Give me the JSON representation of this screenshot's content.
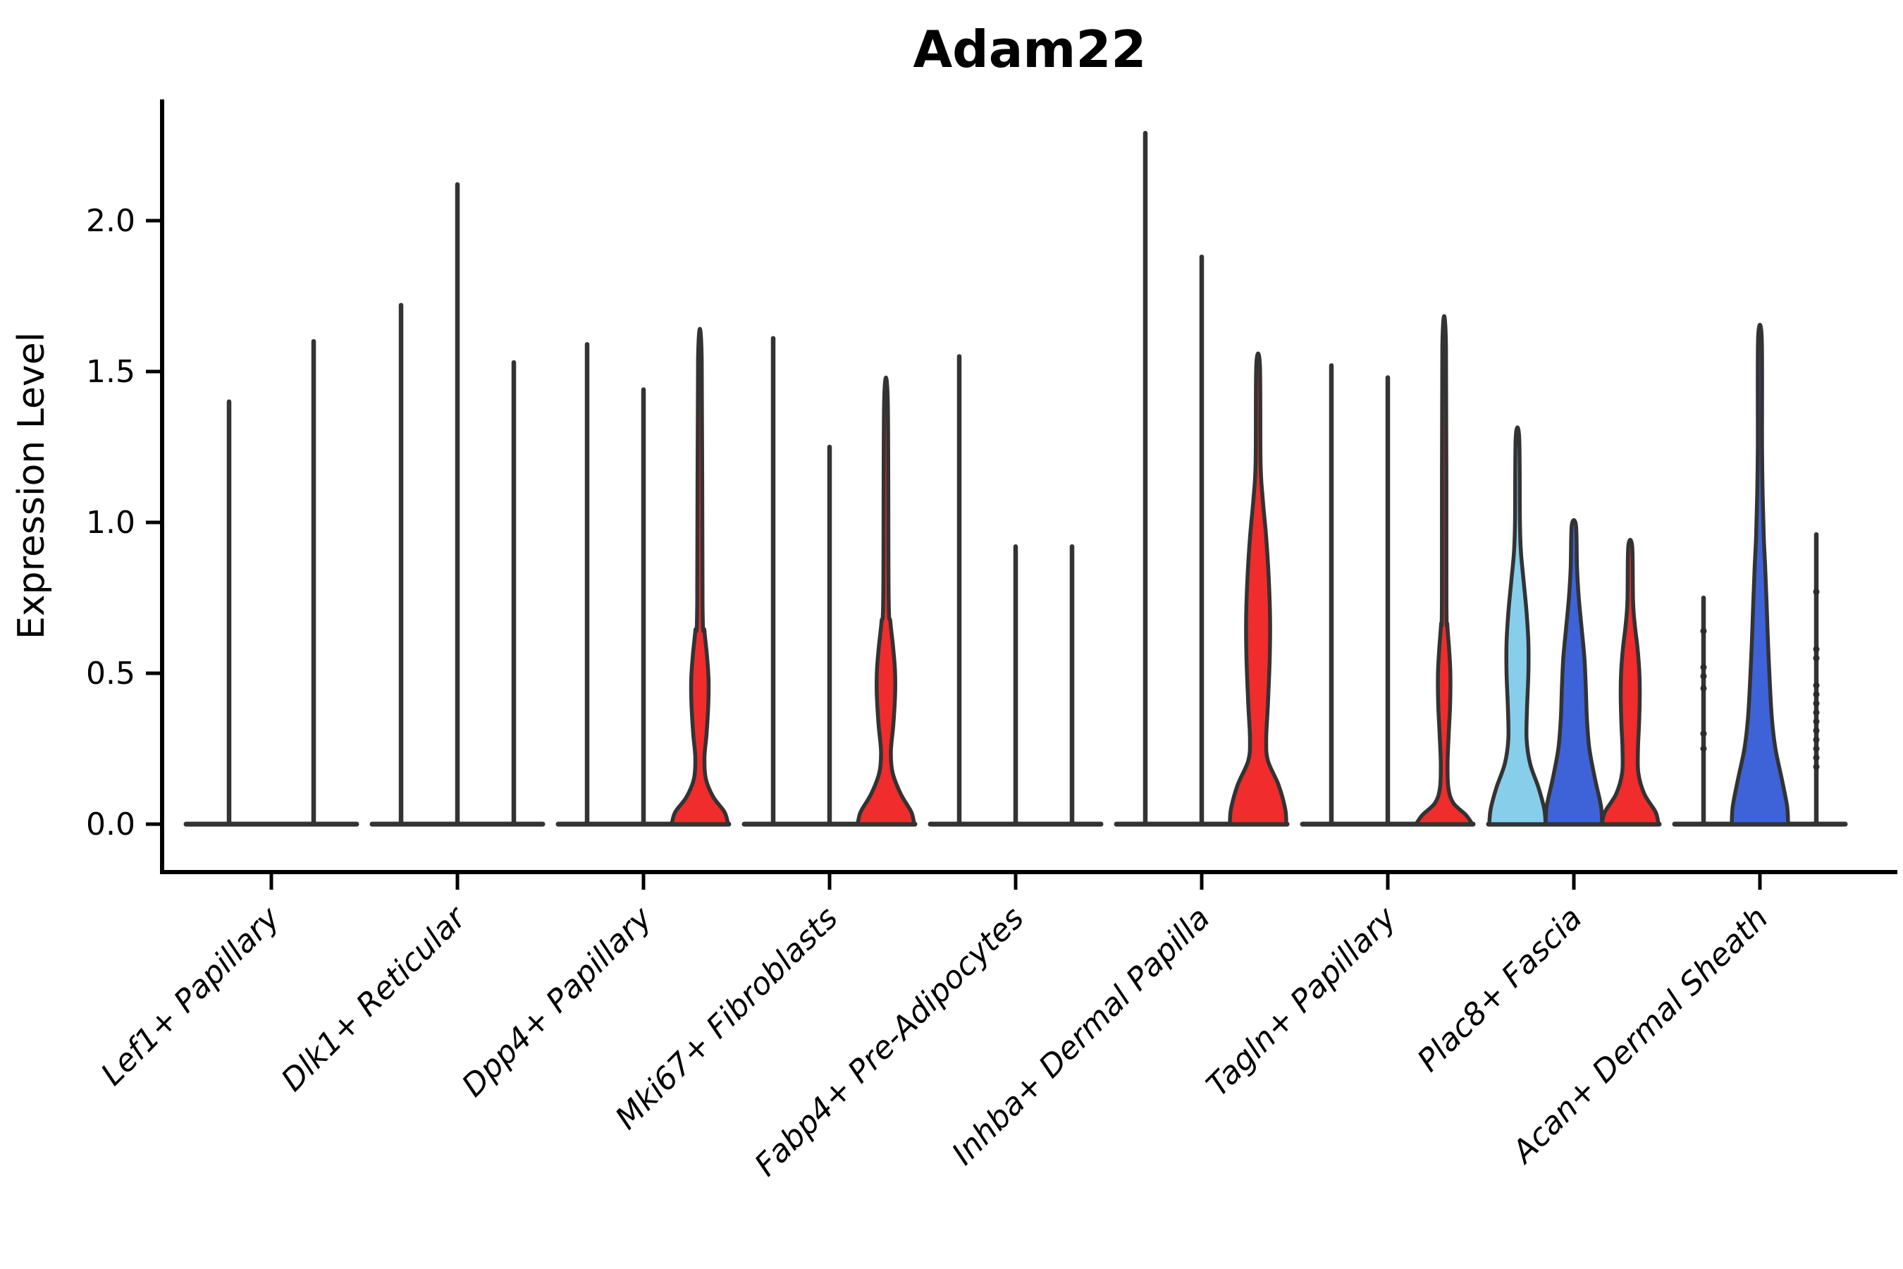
{
  "title": "Adam22",
  "chart_data": {
    "type": "violin",
    "title": "Adam22",
    "xlabel": "",
    "ylabel": "Expression Level",
    "ylim": [
      -0.16,
      2.41
    ],
    "yticks": [
      "0.0",
      "0.5",
      "1.0",
      "1.5",
      "2.0"
    ],
    "ytick_values": [
      0.0,
      0.5,
      1.0,
      1.5,
      2.0
    ],
    "grid": false,
    "legend": "none",
    "x_label_rotation_deg": 45,
    "colors": {
      "red": "#F02C2C",
      "blue": "#3E63D9",
      "light_blue": "#87CEEB",
      "violin_outline": "#333333",
      "axis": "#000000",
      "point": "#2B2B2B"
    },
    "categories": [
      "Lef1+ Papillary",
      "Dlk1+ Reticular",
      "Dpp4+ Papillary",
      "Mki67+ Fibroblasts",
      "Fabp4+ Pre-Adipocytes",
      "Inhba+ Dermal Papilla",
      "Tagln+ Papillary",
      "Plac8+ Fascia",
      "Acan+ Dermal Sheath"
    ],
    "groups": [
      {
        "label": "Lef1+ Papillary",
        "violins": [
          {
            "kind": "stem",
            "max": 1.4
          },
          {
            "kind": "stem",
            "max": 1.6
          }
        ]
      },
      {
        "label": "Dlk1+ Reticular",
        "violins": [
          {
            "kind": "stem",
            "max": 1.72
          },
          {
            "kind": "stem",
            "max": 2.12
          },
          {
            "kind": "stem",
            "max": 1.53
          }
        ]
      },
      {
        "label": "Dpp4+ Papillary",
        "violins": [
          {
            "kind": "stem",
            "max": 1.59
          },
          {
            "kind": "stem",
            "max": 1.44
          },
          {
            "kind": "violin",
            "max": 1.54,
            "fill": "#F02C2C",
            "profile": [
              [
                0,
                40
              ],
              [
                0.04,
                35
              ],
              [
                0.09,
                19
              ],
              [
                0.15,
                8.5
              ],
              [
                0.22,
                6.5
              ],
              [
                0.3,
                9.5
              ],
              [
                0.4,
                12
              ],
              [
                0.48,
                12.3
              ],
              [
                0.56,
                10
              ],
              [
                0.64,
                6.5
              ],
              [
                0.73,
                3.8
              ],
              [
                1.54,
                2.6
              ]
            ]
          }
        ]
      },
      {
        "label": "Mki67+ Fibroblasts",
        "violins": [
          {
            "kind": "stem",
            "max": 1.61
          },
          {
            "kind": "stem",
            "max": 1.25
          },
          {
            "kind": "violin",
            "max": 1.4,
            "fill": "#F02C2C",
            "profile": [
              [
                0,
                40
              ],
              [
                0.04,
                36
              ],
              [
                0.1,
                21
              ],
              [
                0.17,
                9.5
              ],
              [
                0.24,
                7
              ],
              [
                0.33,
                10.5
              ],
              [
                0.43,
                13
              ],
              [
                0.51,
                12.8
              ],
              [
                0.59,
                10
              ],
              [
                0.67,
                6.3
              ],
              [
                0.76,
                3.8
              ],
              [
                1.4,
                2.6
              ]
            ]
          }
        ]
      },
      {
        "label": "Fabp4+ Pre-Adipocytes",
        "violins": [
          {
            "kind": "stem",
            "max": 1.55
          },
          {
            "kind": "stem",
            "max": 0.92
          },
          {
            "kind": "stem",
            "max": 0.92
          }
        ]
      },
      {
        "label": "Inhba+ Dermal Papilla",
        "violins": [
          {
            "kind": "stem",
            "max": 2.29
          },
          {
            "kind": "stem",
            "max": 1.88
          },
          {
            "kind": "violin",
            "max": 1.52,
            "fill": "#F02C2C",
            "profile": [
              [
                0,
                40
              ],
              [
                0.05,
                38.5
              ],
              [
                0.13,
                29
              ],
              [
                0.21,
                14
              ],
              [
                0.28,
                11.5
              ],
              [
                0.4,
                14
              ],
              [
                0.55,
                16.5
              ],
              [
                0.68,
                17
              ],
              [
                0.82,
                15
              ],
              [
                0.95,
                11.5
              ],
              [
                1.08,
                6.5
              ],
              [
                1.2,
                3.5
              ],
              [
                1.52,
                2.6
              ]
            ]
          }
        ]
      },
      {
        "label": "Tagln+ Papillary",
        "violins": [
          {
            "kind": "stem",
            "max": 1.52
          },
          {
            "kind": "stem",
            "max": 1.48
          },
          {
            "kind": "violin",
            "max": 1.58,
            "fill": "#F02C2C",
            "profile": [
              [
                0,
                40
              ],
              [
                0.03,
                31
              ],
              [
                0.07,
                13
              ],
              [
                0.12,
                6
              ],
              [
                0.2,
                4.8
              ],
              [
                0.3,
                6.5
              ],
              [
                0.4,
                8.5
              ],
              [
                0.5,
                8.8
              ],
              [
                0.58,
                7
              ],
              [
                0.66,
                4.5
              ],
              [
                0.75,
                3.2
              ],
              [
                1.58,
                2.6
              ]
            ]
          }
        ]
      },
      {
        "label": "Plac8+ Fascia",
        "violins": [
          {
            "kind": "violin",
            "max": 1.28,
            "fill": "#87CEEB",
            "profile": [
              [
                0,
                40
              ],
              [
                0.05,
                38
              ],
              [
                0.12,
                30
              ],
              [
                0.2,
                18
              ],
              [
                0.28,
                13
              ],
              [
                0.38,
                13.5
              ],
              [
                0.5,
                15.5
              ],
              [
                0.6,
                15.5
              ],
              [
                0.7,
                13
              ],
              [
                0.8,
                9
              ],
              [
                0.9,
                5
              ],
              [
                1.0,
                3.5
              ],
              [
                1.28,
                2.5
              ]
            ]
          },
          {
            "kind": "violin",
            "max": 0.99,
            "fill": "#3E63D9",
            "profile": [
              [
                0,
                40
              ],
              [
                0.06,
                38.5
              ],
              [
                0.15,
                30
              ],
              [
                0.25,
                22
              ],
              [
                0.35,
                18.5
              ],
              [
                0.45,
                17
              ],
              [
                0.55,
                15
              ],
              [
                0.65,
                11
              ],
              [
                0.75,
                7
              ],
              [
                0.85,
                4.5
              ],
              [
                0.99,
                3
              ]
            ]
          },
          {
            "kind": "violin",
            "max": 0.92,
            "fill": "#F02C2C",
            "profile": [
              [
                0,
                40
              ],
              [
                0.04,
                36
              ],
              [
                0.1,
                20
              ],
              [
                0.17,
                11.5
              ],
              [
                0.25,
                11
              ],
              [
                0.33,
                12.5
              ],
              [
                0.42,
                13.5
              ],
              [
                0.5,
                13
              ],
              [
                0.58,
                10.5
              ],
              [
                0.66,
                6.5
              ],
              [
                0.74,
                4
              ],
              [
                0.92,
                2.8
              ]
            ]
          }
        ]
      },
      {
        "label": "Acan+ Dermal Sheath",
        "violins": [
          {
            "kind": "stem",
            "max": 0.75,
            "points": [
              0.25,
              0.3,
              0.45,
              0.49,
              0.52,
              0.64
            ]
          },
          {
            "kind": "violin",
            "max": 1.61,
            "fill": "#3E63D9",
            "profile": [
              [
                0,
                40
              ],
              [
                0.06,
                38.5
              ],
              [
                0.15,
                31
              ],
              [
                0.25,
                22
              ],
              [
                0.35,
                17
              ],
              [
                0.47,
                14
              ],
              [
                0.6,
                11.5
              ],
              [
                0.73,
                9.5
              ],
              [
                0.85,
                7.5
              ],
              [
                0.95,
                5.5
              ],
              [
                1.08,
                4
              ],
              [
                1.25,
                3
              ],
              [
                1.61,
                2.6
              ]
            ]
          },
          {
            "kind": "stem",
            "max": 0.96,
            "points": [
              0.19,
              0.22,
              0.25,
              0.28,
              0.31,
              0.34,
              0.37,
              0.4,
              0.43,
              0.46,
              0.55,
              0.58,
              0.77
            ]
          }
        ]
      }
    ]
  }
}
